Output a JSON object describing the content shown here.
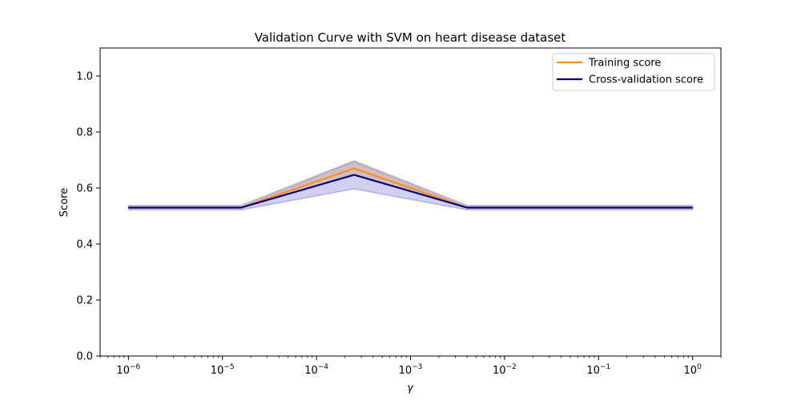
{
  "chart_data": {
    "type": "line",
    "title": "Validation Curve with SVM on heart disease dataset",
    "xlabel": "γ",
    "ylabel": "Score",
    "xscale": "log",
    "xlim": [
      5e-07,
      2
    ],
    "ylim": [
      0.0,
      1.1
    ],
    "x": [
      1e-06,
      1.58e-05,
      0.000251,
      0.00398,
      0.0631,
      1
    ],
    "x_tick_exponents": [
      "-6",
      "-5",
      "-4",
      "-3",
      "-2",
      "-1",
      "0"
    ],
    "y_ticks": [
      "0.0",
      "0.2",
      "0.4",
      "0.6",
      "0.8",
      "1.0"
    ],
    "grid": false,
    "legend_position": "top-right",
    "series": [
      {
        "name": "Training score",
        "color": "#ff8c1a",
        "values": [
          0.53,
          0.53,
          0.67,
          0.53,
          0.53,
          0.53
        ],
        "band_lower": [
          0.528,
          0.528,
          0.647,
          0.528,
          0.528,
          0.528
        ],
        "band_upper": [
          0.532,
          0.532,
          0.693,
          0.532,
          0.532,
          0.532
        ],
        "band_color": "#f5b041"
      },
      {
        "name": "Cross-validation score",
        "color": "#000080",
        "values": [
          0.53,
          0.53,
          0.647,
          0.53,
          0.53,
          0.53
        ],
        "band_lower": [
          0.522,
          0.522,
          0.597,
          0.522,
          0.522,
          0.522
        ],
        "band_upper": [
          0.538,
          0.538,
          0.697,
          0.538,
          0.538,
          0.538
        ],
        "band_color": "#7b7bd0"
      }
    ]
  }
}
